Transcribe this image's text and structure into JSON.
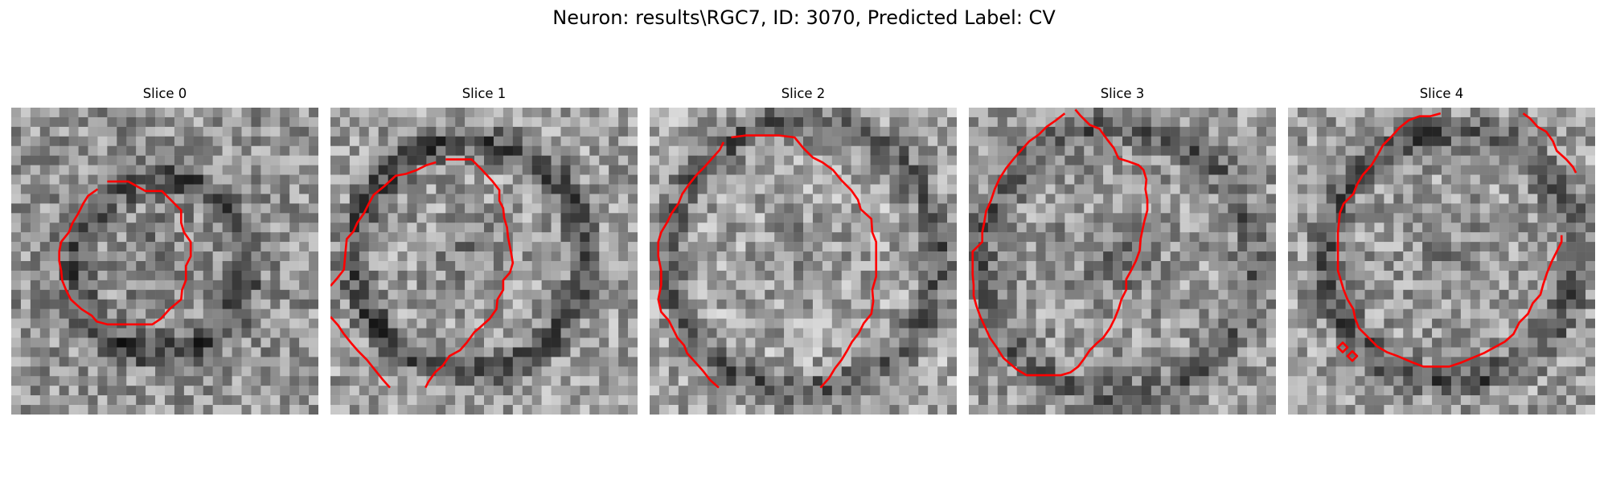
{
  "figure": {
    "title": "Neuron: results\\RGC7, ID: 3070, Predicted Label: CV"
  },
  "panels": [
    {
      "title": "Slice 0"
    },
    {
      "title": "Slice 1"
    },
    {
      "title": "Slice 2"
    },
    {
      "title": "Slice 3"
    },
    {
      "title": "Slice 4"
    }
  ],
  "colors": {
    "contour": "#ff0000"
  }
}
